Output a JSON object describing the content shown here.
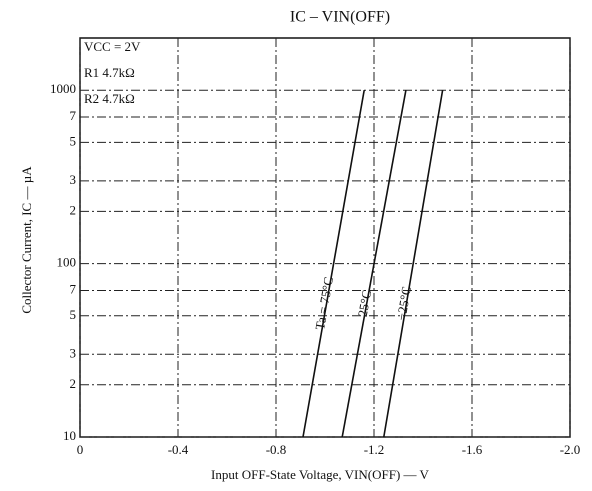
{
  "chart_data": {
    "type": "line",
    "title": "IC – VIN(OFF)",
    "annotations": [
      "VCC = 2V",
      "R1 4.7kΩ",
      "R2 4.7kΩ"
    ],
    "x_label": "Input OFF-State Voltage, VIN(OFF) — V",
    "y_label": "Collector Current, IC — µA",
    "xlim": [
      0,
      -2.0
    ],
    "xticks": [
      0,
      -0.4,
      -0.8,
      -1.2,
      -1.6,
      {
        "value": -2.0,
        "label": "-2.0"
      }
    ],
    "ylim": [
      10,
      2000
    ],
    "log_y": true,
    "grid": true,
    "yticks": [
      10,
      {
        "value": 20,
        "label": "2"
      },
      {
        "value": 30,
        "label": "3"
      },
      {
        "value": 50,
        "label": "5"
      },
      {
        "value": 70,
        "label": "7"
      },
      100,
      {
        "value": 200,
        "label": "2"
      },
      {
        "value": 300,
        "label": "3"
      },
      {
        "value": 500,
        "label": "5"
      },
      {
        "value": 700,
        "label": "7"
      },
      1000
    ],
    "series": [
      {
        "name": "Ta = 75°C",
        "color": "#111111",
        "x": [
          -0.91,
          -1.16
        ],
        "values": [
          10,
          1000
        ]
      },
      {
        "name": "25°C",
        "color": "#111111",
        "x": [
          -1.07,
          -1.33
        ],
        "values": [
          10,
          1000
        ]
      },
      {
        "name": "−25°C",
        "color": "#111111",
        "x": [
          -1.24,
          -1.48
        ],
        "values": [
          10,
          1000
        ]
      }
    ]
  }
}
